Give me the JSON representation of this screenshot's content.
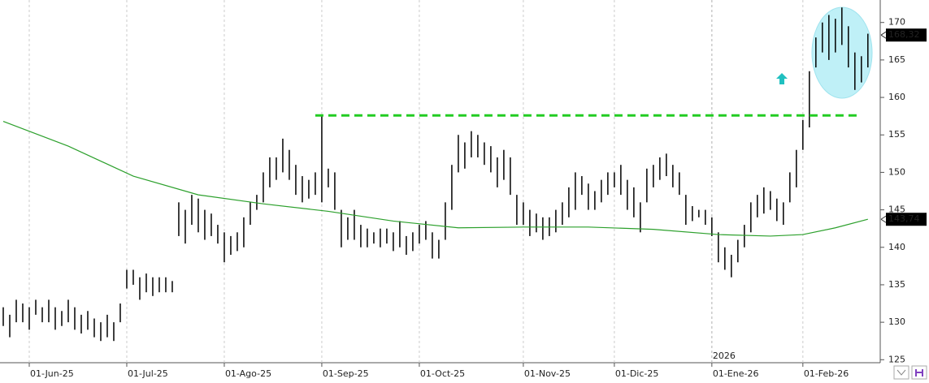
{
  "chart_data": {
    "type": "ohlc",
    "x": [
      0,
      1,
      2,
      3,
      4,
      5,
      6,
      7,
      8,
      9,
      10,
      11,
      12,
      13,
      14,
      15,
      16,
      17,
      18,
      19,
      20,
      21,
      22,
      23,
      24,
      25,
      26,
      27,
      28,
      29,
      30,
      31,
      32,
      33,
      34,
      35,
      36,
      37,
      38,
      39,
      40,
      41,
      42,
      43,
      44,
      45,
      46,
      47,
      48,
      49,
      50,
      51,
      52,
      53,
      54,
      55,
      56,
      57,
      58,
      59,
      60,
      61,
      62,
      63,
      64,
      65,
      66,
      67,
      68,
      69,
      70,
      71,
      72,
      73,
      74,
      75,
      76,
      77,
      78,
      79,
      80,
      81,
      82,
      83,
      84,
      85,
      86,
      87,
      88,
      89,
      90,
      91,
      92,
      93,
      94,
      95,
      96,
      97,
      98,
      99,
      100,
      101,
      102,
      103,
      104,
      105,
      106,
      107,
      108,
      109,
      110,
      111,
      112,
      113,
      114,
      115,
      116,
      117,
      118,
      119,
      120,
      121,
      122,
      123,
      124,
      125,
      126,
      127,
      128,
      129,
      130,
      131,
      132,
      133
    ],
    "low": [
      129.5,
      128,
      130,
      130,
      129,
      131,
      130,
      130,
      129,
      129.5,
      130,
      129,
      128.5,
      129,
      128,
      127.5,
      128,
      127.5,
      130,
      134.5,
      135,
      133,
      134,
      133.5,
      134,
      134,
      134,
      141.5,
      140.5,
      143,
      142,
      141,
      141.5,
      140.5,
      138,
      139,
      139.5,
      140,
      143,
      145,
      146,
      148,
      149,
      150,
      149,
      147,
      146,
      146.5,
      147,
      146,
      148,
      145,
      140,
      141,
      141,
      140,
      140,
      140.5,
      140,
      140.5,
      139.5,
      140,
      139,
      139.5,
      140.5,
      141,
      138.5,
      138.5,
      141,
      145,
      150,
      150.5,
      152,
      152,
      151,
      150,
      148,
      149,
      147,
      143,
      143,
      141.5,
      142,
      141,
      141.5,
      142,
      143,
      144,
      145,
      147,
      145,
      145,
      146,
      147,
      148,
      147,
      145,
      144,
      142,
      146,
      148,
      149,
      149.5,
      148,
      147,
      143,
      143.5,
      144,
      143,
      141.5,
      138,
      137,
      136,
      138,
      140,
      142,
      144,
      144.5,
      145,
      143.5,
      143,
      146,
      148,
      153,
      156,
      164,
      166,
      165,
      166,
      167,
      164,
      161,
      162,
      164
    ],
    "high": [
      132,
      131,
      133,
      132.5,
      132,
      133,
      132,
      133,
      132,
      131.5,
      133,
      132,
      131,
      131.5,
      130.5,
      130,
      131,
      130,
      132.5,
      137,
      137,
      136,
      136.5,
      136,
      136,
      136,
      135.5,
      146,
      145,
      147,
      146.5,
      145,
      144.5,
      143,
      142,
      141.5,
      142,
      144,
      146,
      147,
      150,
      152,
      152,
      154.5,
      153,
      151,
      149.5,
      149,
      150,
      157.6,
      150.5,
      150,
      145,
      144,
      145,
      143,
      142.5,
      142,
      142.5,
      142.5,
      142,
      143.5,
      141.5,
      142,
      143,
      143.5,
      142,
      141,
      146,
      151,
      155,
      154,
      155.5,
      155,
      154,
      153.5,
      152,
      153,
      152,
      147,
      146,
      145,
      144.5,
      144,
      144,
      145,
      146,
      148,
      150,
      149.5,
      148.5,
      147.5,
      149,
      150,
      150,
      151,
      149,
      148,
      146,
      150.5,
      151,
      152,
      152.5,
      151,
      150,
      147,
      145.5,
      145,
      145,
      144,
      142,
      140,
      139,
      141,
      143,
      146,
      147,
      148,
      147.5,
      146.5,
      146,
      150,
      153,
      157,
      163.5,
      168,
      170,
      171,
      170.5,
      172,
      169.5,
      166,
      165.5,
      168.5
    ],
    "color": "#000000",
    "ma": {
      "color": "#2ca02c",
      "x": [
        0,
        10,
        20,
        30,
        40,
        50,
        60,
        70,
        80,
        90,
        100,
        110,
        118,
        123,
        128,
        133
      ],
      "values": [
        156.8,
        153.5,
        149.5,
        147,
        145.8,
        144.8,
        143.5,
        142.6,
        142.7,
        142.7,
        142.4,
        141.7,
        141.5,
        141.7,
        142.6,
        143.74
      ],
      "last": {
        "value": 143.74,
        "label": "143,74"
      }
    },
    "last_price": {
      "value": 168.32,
      "label": "168,32"
    },
    "resistance_line": {
      "value": 157.6,
      "x": [
        48,
        132
      ],
      "color": "#22cc22"
    },
    "year_marker": {
      "x": 109,
      "label": "2026"
    },
    "xlim": [
      -0.5,
      134.9
    ],
    "xticks": [
      {
        "value": 4,
        "label": "01-Jun-25"
      },
      {
        "value": 19,
        "label": "01-Jul-25"
      },
      {
        "value": 34,
        "label": "01-Ago-25"
      },
      {
        "value": 49,
        "label": "01-Sep-25"
      },
      {
        "value": 64,
        "label": "01-Oct-25"
      },
      {
        "value": 80,
        "label": "01-Nov-25"
      },
      {
        "value": 94,
        "label": "01-Dic-25"
      },
      {
        "value": 109,
        "label": "01-Ene-26"
      },
      {
        "value": 123,
        "label": "01-Feb-26"
      }
    ],
    "ylim": [
      124.6,
      173
    ],
    "yticks": [
      125,
      130,
      135,
      140,
      145,
      150,
      155,
      160,
      165,
      170
    ]
  }
}
